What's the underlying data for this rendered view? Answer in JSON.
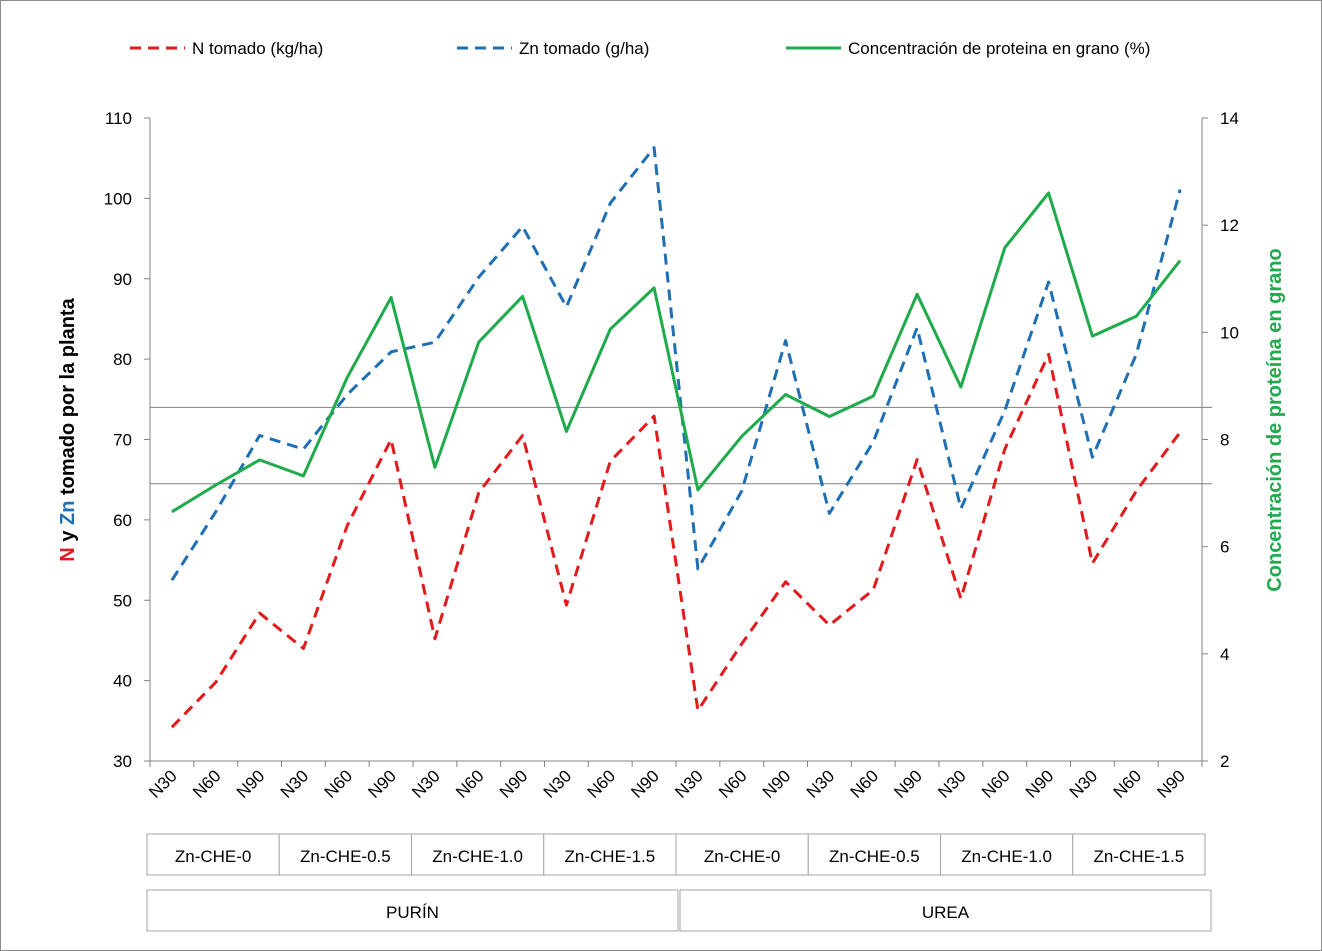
{
  "chart_data": {
    "type": "line",
    "legend_position": "top",
    "grid": false,
    "categories": [
      "N30",
      "N60",
      "N90",
      "N30",
      "N60",
      "N90",
      "N30",
      "N60",
      "N90",
      "N30",
      "N60",
      "N90",
      "N30",
      "N60",
      "N90",
      "N30",
      "N60",
      "N90",
      "N30",
      "N60",
      "N90",
      "N30",
      "N60",
      "N90"
    ],
    "groups_level1": [
      "Zn-CHE-0",
      "Zn-CHE-0.5",
      "Zn-CHE-1.0",
      "Zn-CHE-1.5",
      "Zn-CHE-0",
      "Zn-CHE-0.5",
      "Zn-CHE-1.0",
      "Zn-CHE-1.5"
    ],
    "groups_level2": [
      "PURÍN",
      "UREA"
    ],
    "y_left": {
      "label_parts": [
        {
          "text": "N",
          "color": "#e31a1c"
        },
        {
          "text": " y ",
          "color": "#000000"
        },
        {
          "text": "Zn",
          "color": "#1f6fb4"
        },
        {
          "text": " tomado por la planta",
          "color": "#000000"
        }
      ],
      "range": [
        30,
        110
      ],
      "ticks": [
        "30",
        "40",
        "50",
        "60",
        "70",
        "80",
        "90",
        "100",
        "110"
      ]
    },
    "y_right": {
      "label": "Concentración de proteína en grano",
      "color": "#1faa4b",
      "range": [
        2,
        14
      ],
      "ticks": [
        "2",
        "4",
        "6",
        "8",
        "10",
        "12",
        "14"
      ]
    },
    "reference_lines_left_axis": [
      74,
      64.5
    ],
    "series": [
      {
        "name": "N tomado (kg/ha)",
        "axis": "left",
        "style": "dashed",
        "color": "#e31a1c",
        "values": [
          34.2,
          39.8,
          48.4,
          44.0,
          59.3,
          70.0,
          45.2,
          63.4,
          70.5,
          49.4,
          67.3,
          72.9,
          36.3,
          44.6,
          52.3,
          46.9,
          51.3,
          67.5,
          50.2,
          68.8,
          80.6,
          54.6,
          63.6,
          70.9
        ]
      },
      {
        "name": "Zn tomado (g/ha)",
        "axis": "left",
        "style": "dashed",
        "color": "#1f6fb4",
        "values": [
          52.5,
          61.0,
          70.5,
          68.8,
          75.6,
          80.9,
          82.1,
          90.2,
          96.5,
          86.5,
          99.4,
          106.3,
          53.9,
          63.6,
          82.3,
          60.8,
          69.7,
          83.9,
          61.4,
          73.6,
          89.6,
          67.8,
          80.6,
          101.1
        ]
      },
      {
        "name": "Concentración de proteina en grano (%)",
        "axis": "right",
        "style": "solid",
        "color": "#1faa4b",
        "values": [
          6.65,
          7.15,
          7.62,
          7.32,
          9.16,
          10.65,
          7.48,
          9.82,
          10.67,
          8.15,
          10.06,
          10.83,
          7.06,
          8.06,
          8.84,
          8.43,
          8.81,
          10.71,
          8.98,
          11.58,
          12.6,
          9.93,
          10.3,
          11.34
        ]
      }
    ]
  }
}
